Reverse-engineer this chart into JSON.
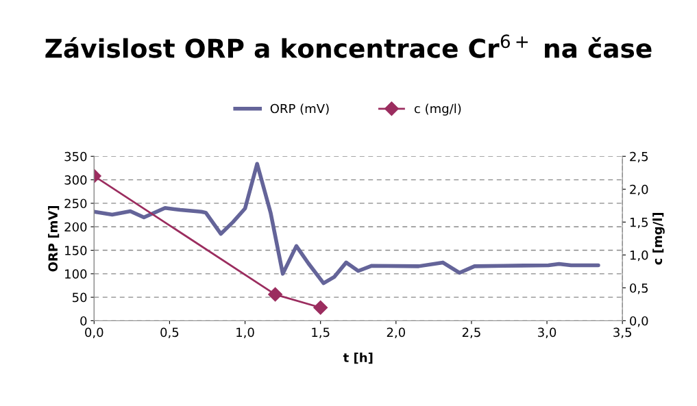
{
  "chart_data": {
    "type": "line",
    "title": "Závislost ORP a koncentrace Cr$^{6+}$ na čase",
    "xlabel": "t [h]",
    "ylabel": "ORP [mV]",
    "y2label": "c [mg/l]",
    "series": [
      {
        "name": "ORP (mV)",
        "color": "#646499",
        "marker": "none",
        "x": [
          0,
          0.12,
          0.24,
          0.33,
          0.47,
          0.57,
          0.71,
          0.74,
          0.84,
          0.92,
          1.0,
          1.08,
          1.17,
          1.25,
          1.34,
          1.42,
          1.52,
          1.59,
          1.67,
          1.75,
          1.84,
          2.15,
          2.31,
          2.42,
          2.52,
          2.71,
          3.01,
          3.08,
          3.16,
          3.34
        ],
        "values": [
          232,
          226,
          233,
          220,
          240,
          236,
          232,
          230,
          185,
          210,
          239,
          334,
          229,
          100,
          159,
          122,
          80,
          93,
          124,
          106,
          117,
          116,
          124,
          102,
          116,
          117,
          118,
          121,
          118,
          118
        ]
      },
      {
        "name": "c (mg/l)",
        "color": "#9b2d5f",
        "marker": "diamond",
        "axis": "y2",
        "x": [
          0,
          1.2,
          1.5
        ],
        "values": [
          2.2,
          0.4,
          0.2
        ]
      }
    ],
    "xlim": [
      0,
      3.5
    ],
    "xticks": [
      {
        "value": 0,
        "label": "0,0"
      },
      {
        "value": 0.5,
        "label": "0,5"
      },
      {
        "value": 1,
        "label": "1,0"
      },
      {
        "value": 1.5,
        "label": "1,5"
      },
      {
        "value": 2,
        "label": "2,0"
      },
      {
        "value": 2.5,
        "label": "2,5"
      },
      {
        "value": 3,
        "label": "3,0"
      },
      {
        "value": 3.5,
        "label": "3,5"
      }
    ],
    "ylim": [
      0,
      350
    ],
    "yticks": [
      0,
      50,
      100,
      150,
      200,
      250,
      300,
      350
    ],
    "y2lim": [
      0,
      2.5
    ],
    "y2ticks": [
      {
        "value": 0,
        "label": "0,0"
      },
      {
        "value": 0.5,
        "label": "0,5"
      },
      {
        "value": 1,
        "label": "1,0"
      },
      {
        "value": 1.5,
        "label": "1,5"
      },
      {
        "value": 2,
        "label": "2,0"
      },
      {
        "value": 2.5,
        "label": "2,5"
      }
    ],
    "grid": "y",
    "legend": "top",
    "line_style": "solid"
  }
}
